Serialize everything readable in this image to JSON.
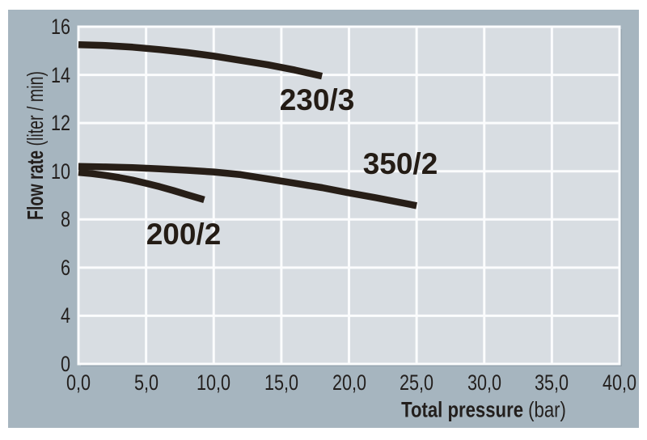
{
  "page": {
    "background": "#ffffff"
  },
  "panel": {
    "background": "#a6b5bf"
  },
  "chart_data": {
    "type": "line",
    "title": "",
    "xlabel_bold": "Total pressure",
    "xlabel_unit": "(bar)",
    "ylabel_bold": "Flow rate",
    "ylabel_unit": "(liter / min)",
    "xlim": [
      0,
      40
    ],
    "ylim": [
      0,
      16
    ],
    "grid": "on",
    "legend_position": "labels-on-plot",
    "plot_bg_color": "#d8dde2",
    "grid_color": "#fbfcfd",
    "curve_color": "#271e17",
    "text_color": "#231f1d",
    "shadow_color": "#96a5af",
    "x_tick_values": [
      0,
      5,
      10,
      15,
      20,
      25,
      30,
      35,
      40
    ],
    "x_ticks": [
      "0,0",
      "5,0",
      "10,0",
      "15,0",
      "20,0",
      "25,0",
      "30,0",
      "35,0",
      "40,0"
    ],
    "y_tick_values": [
      16,
      14,
      12,
      10,
      8,
      6,
      4,
      0
    ],
    "y_ticks": [
      "16",
      "14",
      "12",
      "10",
      "8",
      "6",
      "4",
      "0"
    ],
    "series": [
      {
        "name": "230/3",
        "label": "230/3",
        "points": [
          [
            0,
            15.25
          ],
          [
            2,
            15.22
          ],
          [
            4,
            15.15
          ],
          [
            6,
            15.05
          ],
          [
            8,
            14.93
          ],
          [
            10,
            14.78
          ],
          [
            12,
            14.6
          ],
          [
            14,
            14.42
          ],
          [
            16,
            14.2
          ],
          [
            18,
            13.95
          ]
        ]
      },
      {
        "name": "350/2",
        "label": "350/2",
        "points": [
          [
            0,
            10.2
          ],
          [
            2,
            10.18
          ],
          [
            4,
            10.15
          ],
          [
            6,
            10.1
          ],
          [
            8,
            10.04
          ],
          [
            10,
            9.97
          ],
          [
            12,
            9.86
          ],
          [
            14,
            9.68
          ],
          [
            16,
            9.5
          ],
          [
            18,
            9.32
          ],
          [
            20,
            9.1
          ],
          [
            22,
            8.9
          ],
          [
            24,
            8.68
          ],
          [
            25,
            8.57
          ]
        ]
      },
      {
        "name": "200/2",
        "label": "200/2",
        "points": [
          [
            0,
            9.95
          ],
          [
            1,
            9.9
          ],
          [
            2,
            9.83
          ],
          [
            3,
            9.74
          ],
          [
            4,
            9.63
          ],
          [
            5,
            9.5
          ],
          [
            6,
            9.36
          ],
          [
            7,
            9.2
          ],
          [
            8,
            9.03
          ],
          [
            9.3,
            8.82
          ]
        ]
      }
    ]
  }
}
